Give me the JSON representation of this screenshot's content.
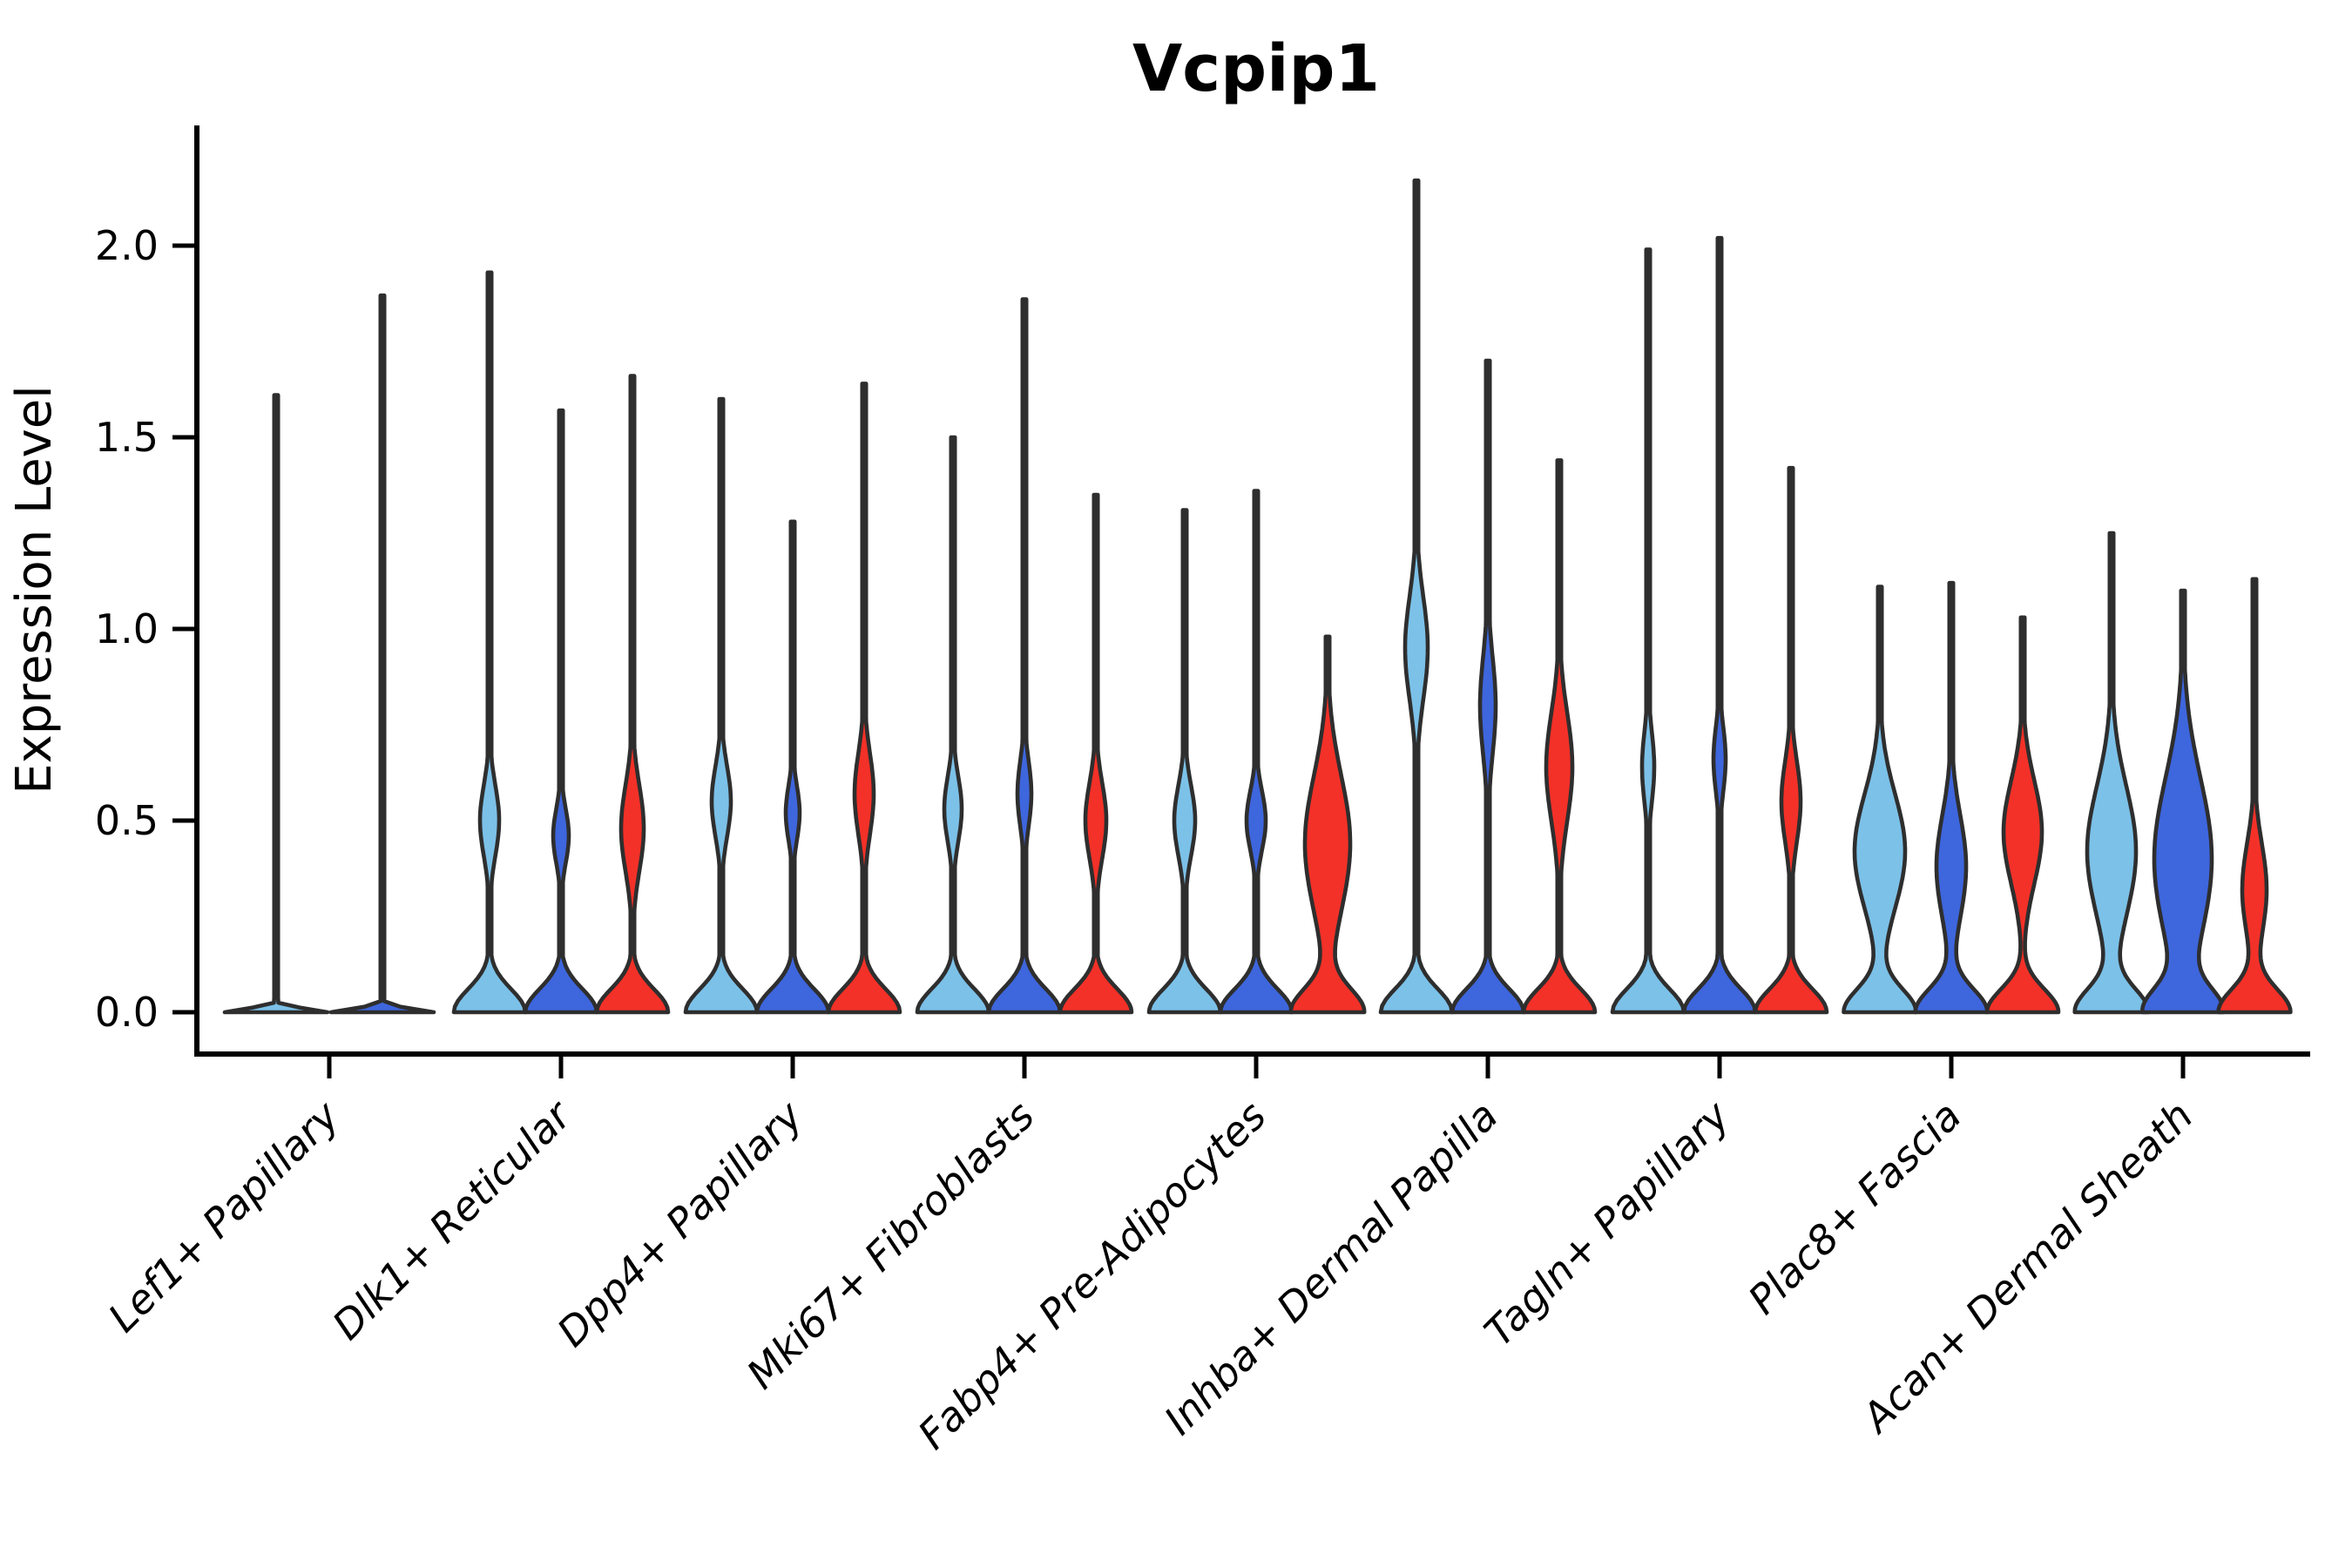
{
  "figure": {
    "background": "#ffffff"
  },
  "chart_data": {
    "type": "violin",
    "title": "Vcpip1",
    "ylabel": "Expression Level",
    "xlabel": "",
    "ylim": [
      -0.11,
      2.35
    ],
    "ytick_labels": [
      "0.0",
      "0.5",
      "1.0",
      "1.5",
      "2.0"
    ],
    "ytick_values": [
      0,
      0.5,
      1.0,
      1.5,
      2.0
    ],
    "grid": false,
    "legend_position": "none",
    "categories": [
      "Lef1+ Papillary",
      "Dlk1+ Reticular",
      "Dpp4+ Papillary",
      "Mki67+ Fibroblasts",
      "Fabp4+ Pre-Adipocytes",
      "Inhba+ Dermal Papilla",
      "Tagln+ Papillary",
      "Plac8+ Fascia",
      "Acan+ Dermal Sheath"
    ],
    "split_colors": {
      "light_blue": "#7CC1E8",
      "dark_blue": "#3E66DD",
      "red": "#F33128"
    },
    "outline_color": "#2E2E2E",
    "series": [
      {
        "color_key": "light_blue",
        "hex": "#7CC1E8",
        "max_expression": [
          1.61,
          1.93,
          1.6,
          1.5,
          1.31,
          2.17,
          1.99,
          1.11,
          1.25
        ]
      },
      {
        "color_key": "dark_blue",
        "hex": "#3E66DD",
        "max_expression": [
          1.87,
          1.57,
          1.28,
          1.86,
          1.36,
          1.7,
          2.02,
          1.12,
          1.1
        ]
      },
      {
        "color_key": "red",
        "hex": "#F33128",
        "max_expression": [
          null,
          1.66,
          1.64,
          1.35,
          0.98,
          1.44,
          1.42,
          1.03,
          1.13
        ]
      }
    ],
    "violins": [
      {
        "group": 0,
        "offset": -61,
        "color_key": "light_blue",
        "max": 1.61,
        "base_amp": 59,
        "base_sigma": 0.014,
        "bulges": []
      },
      {
        "group": 0,
        "offset": 61,
        "color_key": "dark_blue",
        "max": 1.87,
        "base_amp": 59,
        "base_sigma": 0.014,
        "bulges": []
      },
      {
        "group": 1,
        "offset": -82,
        "color_key": "light_blue",
        "max": 1.93,
        "bulges": [
          [
            0.5,
            0.13,
            11
          ]
        ]
      },
      {
        "group": 1,
        "offset": 0,
        "color_key": "dark_blue",
        "max": 1.57,
        "bulges": [
          [
            0.46,
            0.1,
            9
          ]
        ]
      },
      {
        "group": 1,
        "offset": 82,
        "color_key": "red",
        "max": 1.66,
        "bulges": [
          [
            0.48,
            0.16,
            13
          ]
        ]
      },
      {
        "group": 2,
        "offset": -82,
        "color_key": "light_blue",
        "max": 1.6,
        "bulges": [
          [
            0.55,
            0.13,
            11
          ]
        ]
      },
      {
        "group": 2,
        "offset": 0,
        "color_key": "dark_blue",
        "max": 1.28,
        "bulges": [
          [
            0.52,
            0.1,
            8
          ]
        ]
      },
      {
        "group": 2,
        "offset": 82,
        "color_key": "red",
        "max": 1.64,
        "bulges": [
          [
            0.57,
            0.15,
            11
          ]
        ]
      },
      {
        "group": 3,
        "offset": -82,
        "color_key": "light_blue",
        "max": 1.5,
        "bulges": [
          [
            0.53,
            0.12,
            10
          ]
        ]
      },
      {
        "group": 3,
        "offset": 0,
        "color_key": "dark_blue",
        "max": 1.86,
        "bulges": [
          [
            0.57,
            0.12,
            8
          ]
        ]
      },
      {
        "group": 3,
        "offset": 82,
        "color_key": "red",
        "max": 1.35,
        "bulges": [
          [
            0.5,
            0.14,
            12
          ]
        ]
      },
      {
        "group": 4,
        "offset": -82,
        "color_key": "light_blue",
        "max": 1.31,
        "bulges": [
          [
            0.5,
            0.13,
            12
          ]
        ]
      },
      {
        "group": 4,
        "offset": 0,
        "color_key": "dark_blue",
        "max": 1.36,
        "bulges": [
          [
            0.5,
            0.11,
            11
          ]
        ]
      },
      {
        "group": 4,
        "offset": 82,
        "color_key": "red",
        "max": 0.98,
        "bulges": [
          [
            0.44,
            0.25,
            26
          ]
        ]
      },
      {
        "group": 5,
        "offset": -82,
        "color_key": "light_blue",
        "max": 2.17,
        "bulges": [
          [
            0.95,
            0.19,
            13
          ]
        ]
      },
      {
        "group": 5,
        "offset": 0,
        "color_key": "dark_blue",
        "max": 1.7,
        "bulges": [
          [
            0.8,
            0.18,
            9
          ]
        ]
      },
      {
        "group": 5,
        "offset": 82,
        "color_key": "red",
        "max": 1.44,
        "bulges": [
          [
            0.64,
            0.2,
            15
          ]
        ]
      },
      {
        "group": 6,
        "offset": -82,
        "color_key": "light_blue",
        "max": 1.99,
        "bulges": [
          [
            0.64,
            0.13,
            7
          ]
        ]
      },
      {
        "group": 6,
        "offset": 0,
        "color_key": "dark_blue",
        "max": 2.02,
        "bulges": [
          [
            0.66,
            0.12,
            7
          ]
        ]
      },
      {
        "group": 6,
        "offset": 82,
        "color_key": "red",
        "max": 1.42,
        "bulges": [
          [
            0.55,
            0.15,
            11
          ]
        ]
      },
      {
        "group": 7,
        "offset": -82,
        "color_key": "light_blue",
        "max": 1.11,
        "bulges": [
          [
            0.42,
            0.21,
            29
          ]
        ]
      },
      {
        "group": 7,
        "offset": 0,
        "color_key": "dark_blue",
        "max": 1.12,
        "bulges": [
          [
            0.38,
            0.19,
            17
          ]
        ]
      },
      {
        "group": 7,
        "offset": 82,
        "color_key": "red",
        "max": 1.03,
        "bulges": [
          [
            0.47,
            0.19,
            22
          ]
        ]
      },
      {
        "group": 8,
        "offset": -82,
        "color_key": "light_blue",
        "max": 1.25,
        "bulges": [
          [
            0.42,
            0.24,
            28
          ]
        ]
      },
      {
        "group": 8,
        "offset": 0,
        "color_key": "dark_blue",
        "max": 1.1,
        "bulges": [
          [
            0.4,
            0.3,
            33
          ]
        ]
      },
      {
        "group": 8,
        "offset": 82,
        "color_key": "red",
        "max": 1.13,
        "bulges": [
          [
            0.32,
            0.17,
            14
          ]
        ]
      }
    ]
  }
}
